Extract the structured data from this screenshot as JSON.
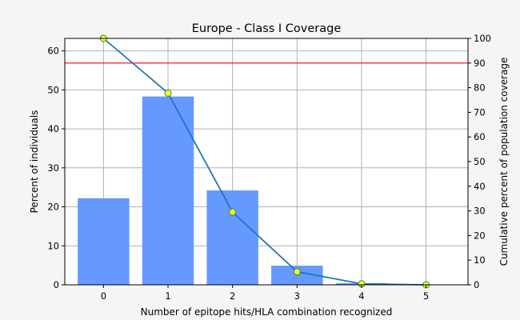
{
  "chart_data": {
    "type": "bar",
    "title": "Europe - Class I Coverage",
    "xlabel": "Number of epitope hits/HLA combination recognized",
    "ylabel": "Percent of individuals",
    "y2label": "Cumulative percent of population coverage",
    "categories": [
      "0",
      "1",
      "2",
      "3",
      "4",
      "5"
    ],
    "x": [
      0,
      1,
      2,
      3,
      4,
      5
    ],
    "ylim": [
      0,
      63.2
    ],
    "y2lim": [
      0,
      100
    ],
    "yticks": [
      0,
      10,
      20,
      30,
      40,
      50,
      60
    ],
    "y2ticks": [
      0,
      10,
      20,
      30,
      40,
      50,
      60,
      70,
      80,
      90,
      100
    ],
    "grid": true,
    "series": [
      {
        "values": [
          22.2,
          48.3,
          24.2,
          4.9,
          0.4,
          0.0
        ],
        "color": "#6699ff",
        "axis": "left",
        "kind": "bar"
      },
      {
        "values": [
          100.0,
          77.8,
          29.5,
          5.3,
          0.4,
          0.0
        ],
        "color": "#1f77b4",
        "marker_fill": "#ffff33",
        "axis": "right",
        "kind": "line"
      }
    ],
    "reference_line": {
      "value": 90,
      "axis": "right",
      "color": "#ff0000"
    }
  }
}
